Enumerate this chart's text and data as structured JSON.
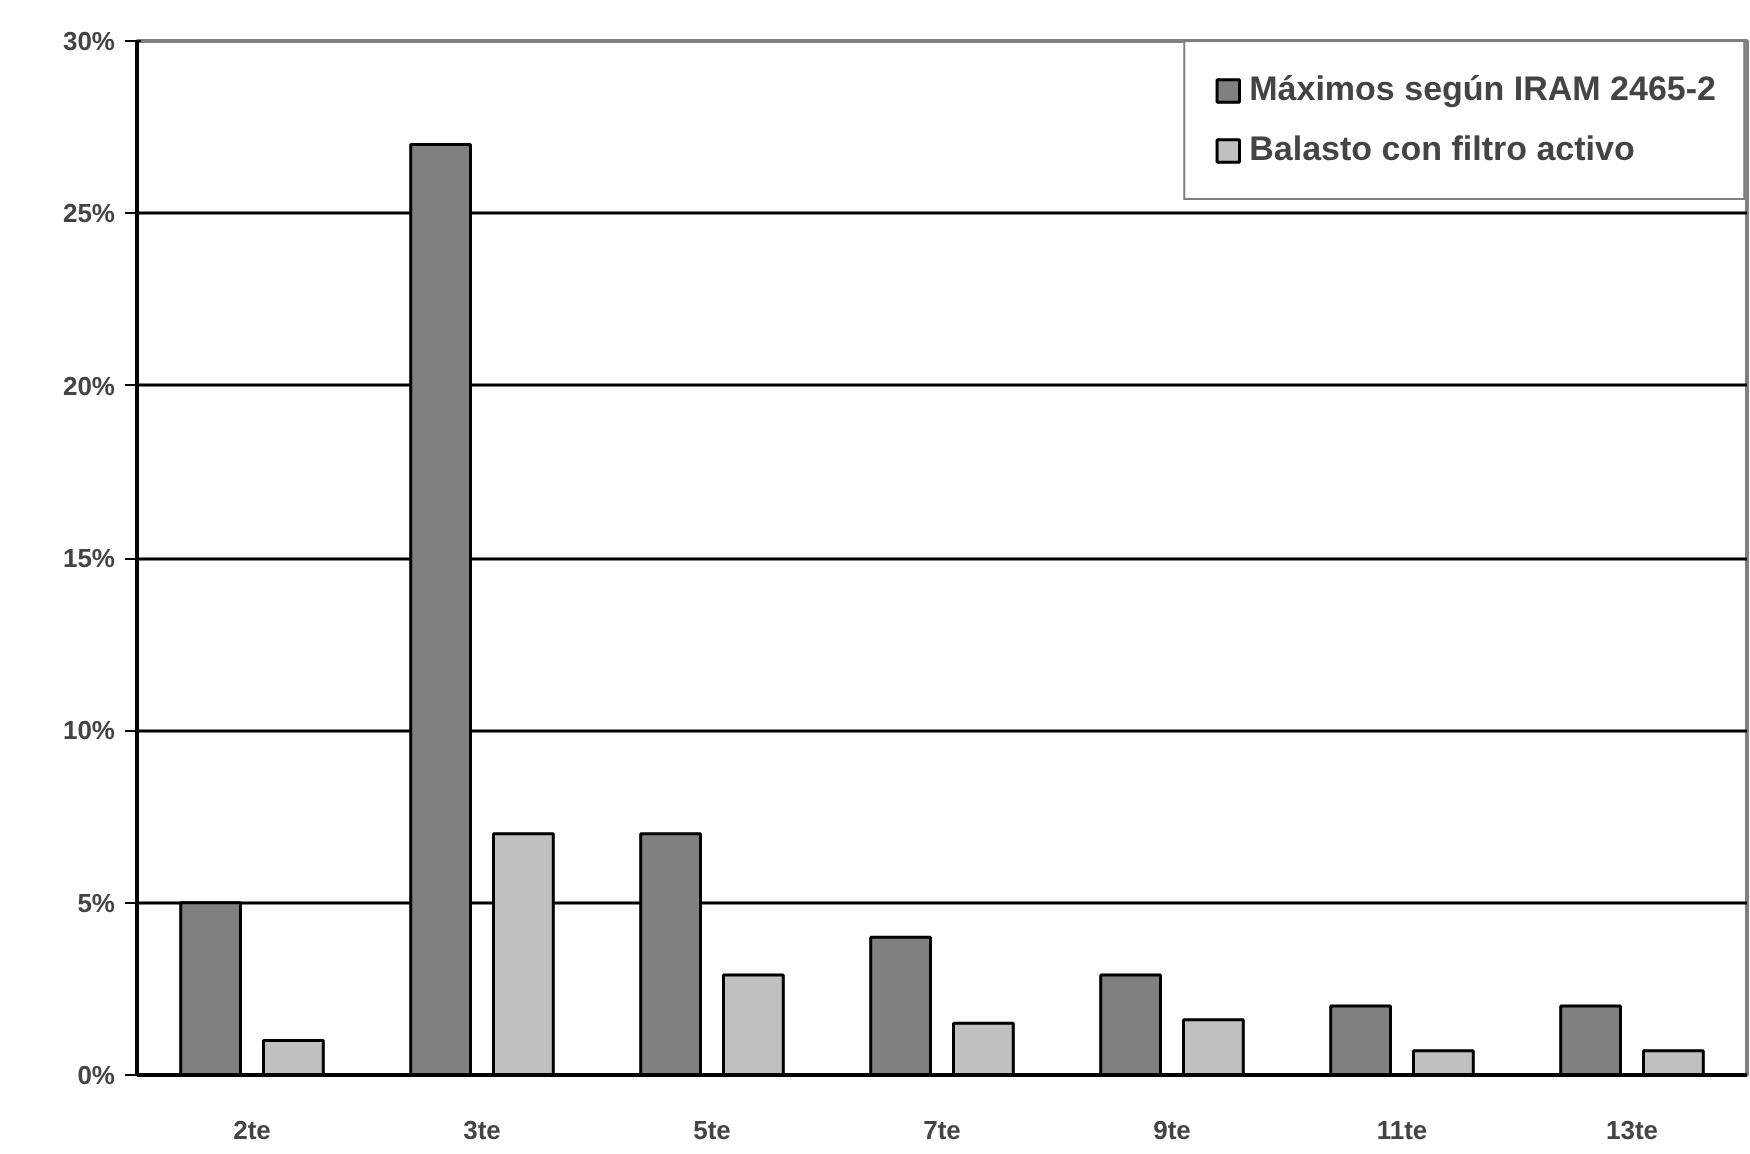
{
  "chart_data": {
    "type": "bar",
    "categories": [
      "2te",
      "3te",
      "5te",
      "7te",
      "9te",
      "11te",
      "13te"
    ],
    "series": [
      {
        "name": "Máximos según IRAM 2465-2",
        "color": "#808080",
        "values": [
          5,
          27,
          7,
          4,
          2.9,
          2,
          2
        ]
      },
      {
        "name": "Balasto con filtro activo",
        "color": "#c0c0c0",
        "values": [
          1,
          7,
          2.9,
          1.5,
          1.6,
          0.7,
          0.7
        ]
      }
    ],
    "ylim": [
      0,
      30
    ],
    "yticks": [
      {
        "value": 0,
        "label": "0%"
      },
      {
        "value": 5,
        "label": "5%"
      },
      {
        "value": 10,
        "label": "10%"
      },
      {
        "value": 15,
        "label": "15%"
      },
      {
        "value": 20,
        "label": "20%"
      },
      {
        "value": 25,
        "label": "25%"
      },
      {
        "value": 30,
        "label": "30%"
      }
    ],
    "grid": "y",
    "legend": "top right"
  }
}
